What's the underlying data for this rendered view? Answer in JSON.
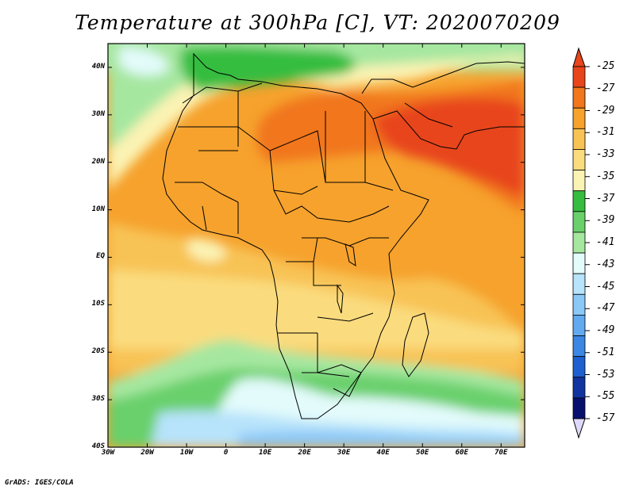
{
  "title": "Temperature at 300hPa [C], VT: 2020070209",
  "credit": "GrADS: IGES/COLA",
  "map": {
    "variable": "Temperature at 300hPa",
    "units": "C",
    "valid_time": "2020070209",
    "lon_range": [
      -30,
      76
    ],
    "lat_range": [
      -40,
      45
    ],
    "lat_ticks": [
      {
        "value": 40,
        "label": "40N"
      },
      {
        "value": 30,
        "label": "30N"
      },
      {
        "value": 20,
        "label": "20N"
      },
      {
        "value": 10,
        "label": "10N"
      },
      {
        "value": 0,
        "label": "EQ"
      },
      {
        "value": -10,
        "label": "10S"
      },
      {
        "value": -20,
        "label": "20S"
      },
      {
        "value": -30,
        "label": "30S"
      },
      {
        "value": -40,
        "label": "40S"
      }
    ],
    "lon_ticks": [
      {
        "value": -30,
        "label": "30W"
      },
      {
        "value": -20,
        "label": "20W"
      },
      {
        "value": -10,
        "label": "10W"
      },
      {
        "value": 0,
        "label": "0"
      },
      {
        "value": 10,
        "label": "10E"
      },
      {
        "value": 20,
        "label": "20E"
      },
      {
        "value": 30,
        "label": "30E"
      },
      {
        "value": 40,
        "label": "40E"
      },
      {
        "value": 50,
        "label": "50E"
      },
      {
        "value": 60,
        "label": "60E"
      },
      {
        "value": 70,
        "label": "70E"
      }
    ]
  },
  "colorbar": {
    "labels": [
      "-25",
      "-27",
      "-29",
      "-31",
      "-33",
      "-35",
      "-37",
      "-39",
      "-41",
      "-43",
      "-45",
      "-47",
      "-49",
      "-51",
      "-53",
      "-55",
      "-57"
    ],
    "colors": [
      "#e8451b",
      "#f1761c",
      "#f6a22d",
      "#f8c354",
      "#fadc7e",
      "#fbf3b4",
      "#36bd3f",
      "#69d06c",
      "#a6e7a0",
      "#e3fbfb",
      "#b7e3fb",
      "#8cc8f6",
      "#62aaf0",
      "#3b87e3",
      "#1e60cf",
      "#1234a0",
      "#08106e"
    ],
    "over_color": "#e8451b",
    "under_color": "#dfd8fa"
  }
}
